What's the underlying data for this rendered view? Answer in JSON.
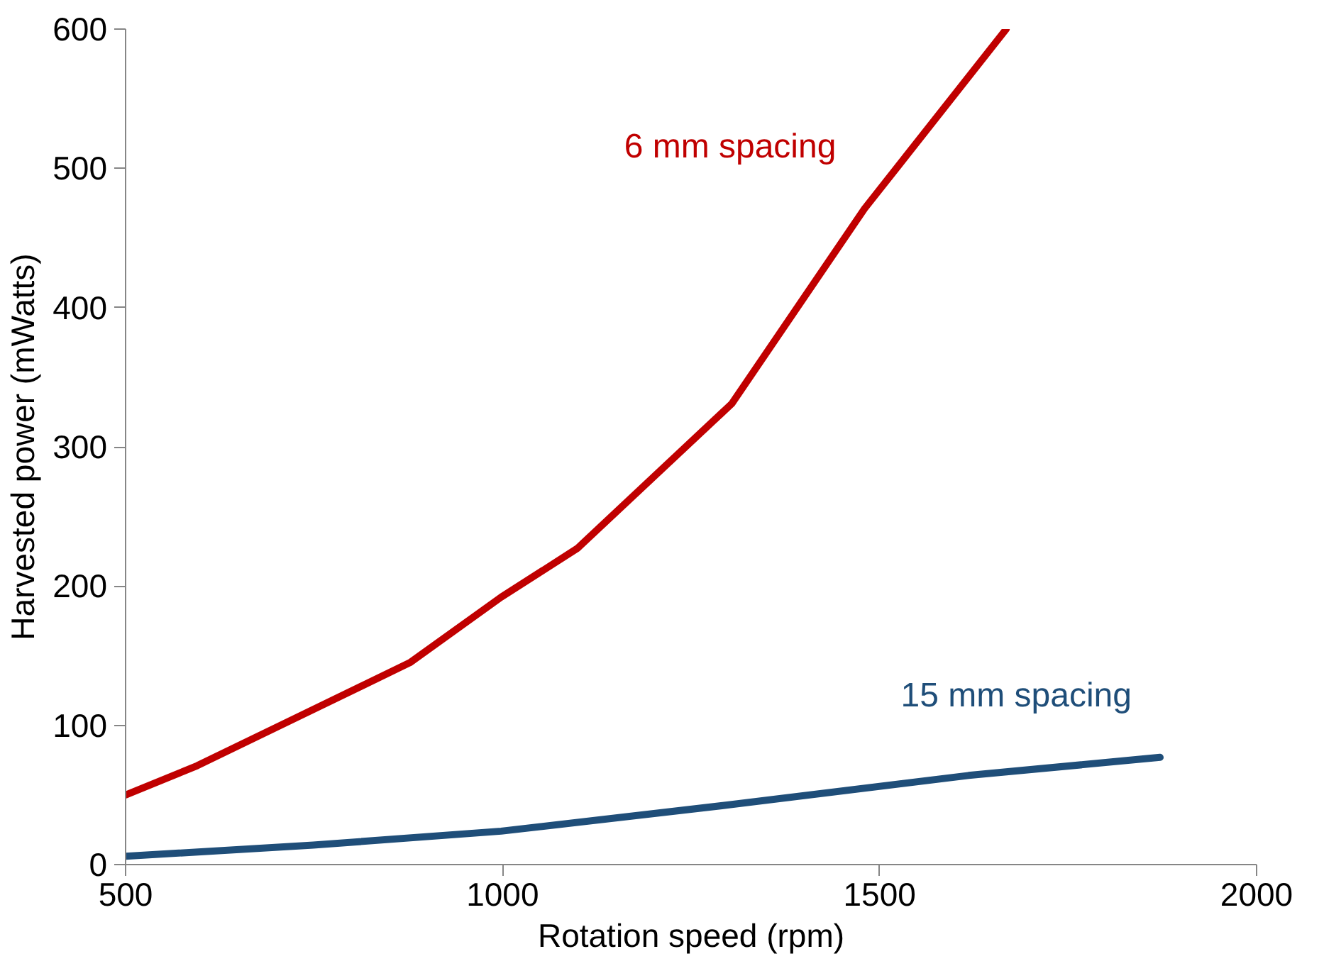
{
  "chart_data": {
    "type": "line",
    "xlabel": "Rotation speed (rpm)",
    "ylabel": "Harvested power (mWatts)",
    "xlim": [
      500,
      2000
    ],
    "ylim": [
      0,
      600
    ],
    "xticks": [
      500,
      1000,
      1500,
      2000
    ],
    "yticks": [
      0,
      100,
      200,
      300,
      400,
      500,
      600
    ],
    "grid": false,
    "series": [
      {
        "name": "6 mm spacing",
        "color": "#c00000",
        "x": [
          500,
          595,
          877,
          998,
          1099,
          1304,
          1480,
          1668
        ],
        "values": [
          50,
          71,
          145,
          192,
          227,
          331,
          471,
          600
        ]
      },
      {
        "name": "15 mm spacing",
        "color": "#1f4e79",
        "x": [
          500,
          749,
          998,
          1302,
          1618,
          1872
        ],
        "values": [
          6,
          14,
          24,
          43,
          64,
          77
        ]
      }
    ]
  }
}
